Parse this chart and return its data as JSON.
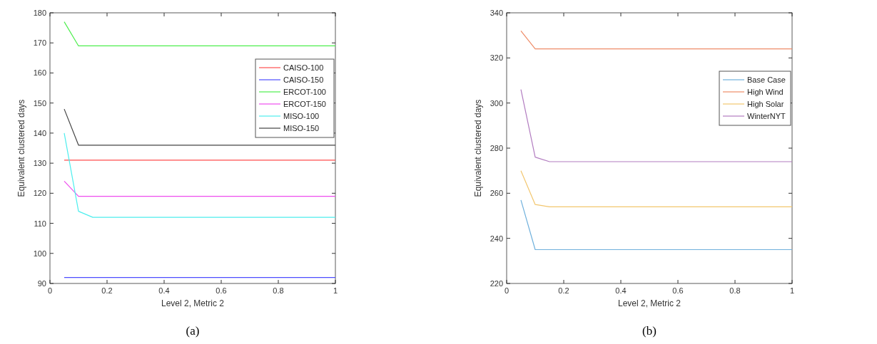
{
  "chart_data": [
    {
      "type": "line",
      "xlabel": "Level 2, Metric 2",
      "ylabel": "Equivalent clustered days",
      "annotations": [
        "(a)"
      ],
      "x": [
        0.05,
        0.1,
        0.15,
        1
      ],
      "xlim": [
        0,
        1
      ],
      "xticks": [
        0,
        0.2,
        0.4,
        0.6,
        0.8,
        1
      ],
      "ylim": [
        90,
        180
      ],
      "yticks": [
        90,
        100,
        110,
        120,
        130,
        140,
        150,
        160,
        170,
        180
      ],
      "legend": "top right",
      "grid": false,
      "marker": "none",
      "line_style": "solid",
      "series": [
        {
          "name": "CAISO-100",
          "color": "#ff4d4d",
          "values": [
            131,
            131,
            131,
            131
          ]
        },
        {
          "name": "CAISO-150",
          "color": "#4d4dff",
          "values": [
            92,
            92,
            92,
            92
          ]
        },
        {
          "name": "ERCOT-100",
          "color": "#4dee4d",
          "values": [
            177,
            169,
            169,
            169
          ]
        },
        {
          "name": "ERCOT-150",
          "color": "#ee4dee",
          "values": [
            124,
            119,
            119,
            119
          ]
        },
        {
          "name": "MISO-100",
          "color": "#4deeee",
          "values": [
            140,
            114,
            112,
            112
          ]
        },
        {
          "name": "MISO-150",
          "color": "#444444",
          "values": [
            148,
            136,
            136,
            136
          ]
        }
      ]
    },
    {
      "type": "line",
      "xlabel": "Level 2, Metric 2",
      "ylabel": "Equivalent clustered days",
      "annotations": [
        "(b)"
      ],
      "x": [
        0.05,
        0.1,
        0.15,
        1
      ],
      "xlim": [
        0,
        1
      ],
      "xticks": [
        0,
        0.2,
        0.4,
        0.6,
        0.8,
        1
      ],
      "ylim": [
        220,
        340
      ],
      "yticks": [
        220,
        240,
        260,
        280,
        300,
        320,
        340
      ],
      "legend": "top right",
      "grid": false,
      "marker": "none",
      "line_style": "solid",
      "series": [
        {
          "name": "Base Case",
          "color": "#6fb0dc",
          "values": [
            257,
            235,
            235,
            235
          ]
        },
        {
          "name": "High Wind",
          "color": "#ee8c68",
          "values": [
            332,
            324,
            324,
            324
          ]
        },
        {
          "name": "High Solar",
          "color": "#f2c66e",
          "values": [
            270,
            255,
            254,
            254
          ]
        },
        {
          "name": "WinterNYT",
          "color": "#b27cc0",
          "values": [
            306,
            276,
            274,
            274
          ]
        }
      ]
    }
  ]
}
